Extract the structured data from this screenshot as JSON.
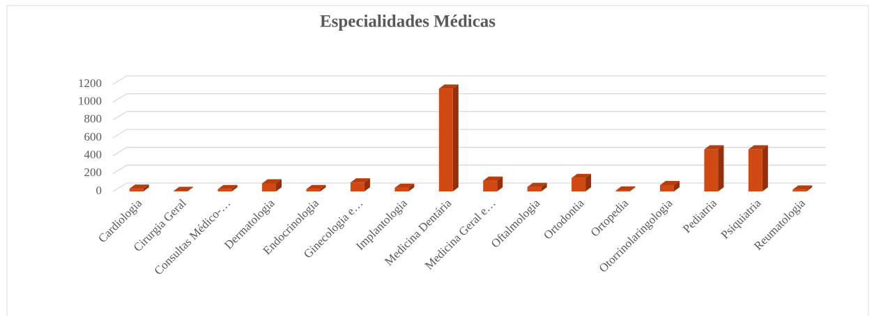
{
  "chart_data": {
    "type": "bar3d",
    "title": "Especialidades Médicas",
    "categories": [
      "Cardiologia",
      "Cirurgia Geral",
      "Consultas Médico-…",
      "Dermatologia",
      "Endocrinologia",
      "Ginecologia e…",
      "Implantologia",
      "Medicina Dentária",
      "Medicina Geral e…",
      "Oftalmologia",
      "Ortodontia",
      "Ortopedia",
      "Otorrinolaringologia",
      "Pediatria",
      "Psiquiatria",
      "Reumatologia"
    ],
    "values": [
      30,
      5,
      25,
      90,
      25,
      100,
      40,
      1150,
      120,
      50,
      150,
      10,
      70,
      470,
      470,
      20
    ],
    "color": "#d24a13",
    "ylim": [
      0,
      1200
    ],
    "yticks": [
      0,
      200,
      400,
      600,
      800,
      1000,
      1200
    ],
    "grid": true
  }
}
